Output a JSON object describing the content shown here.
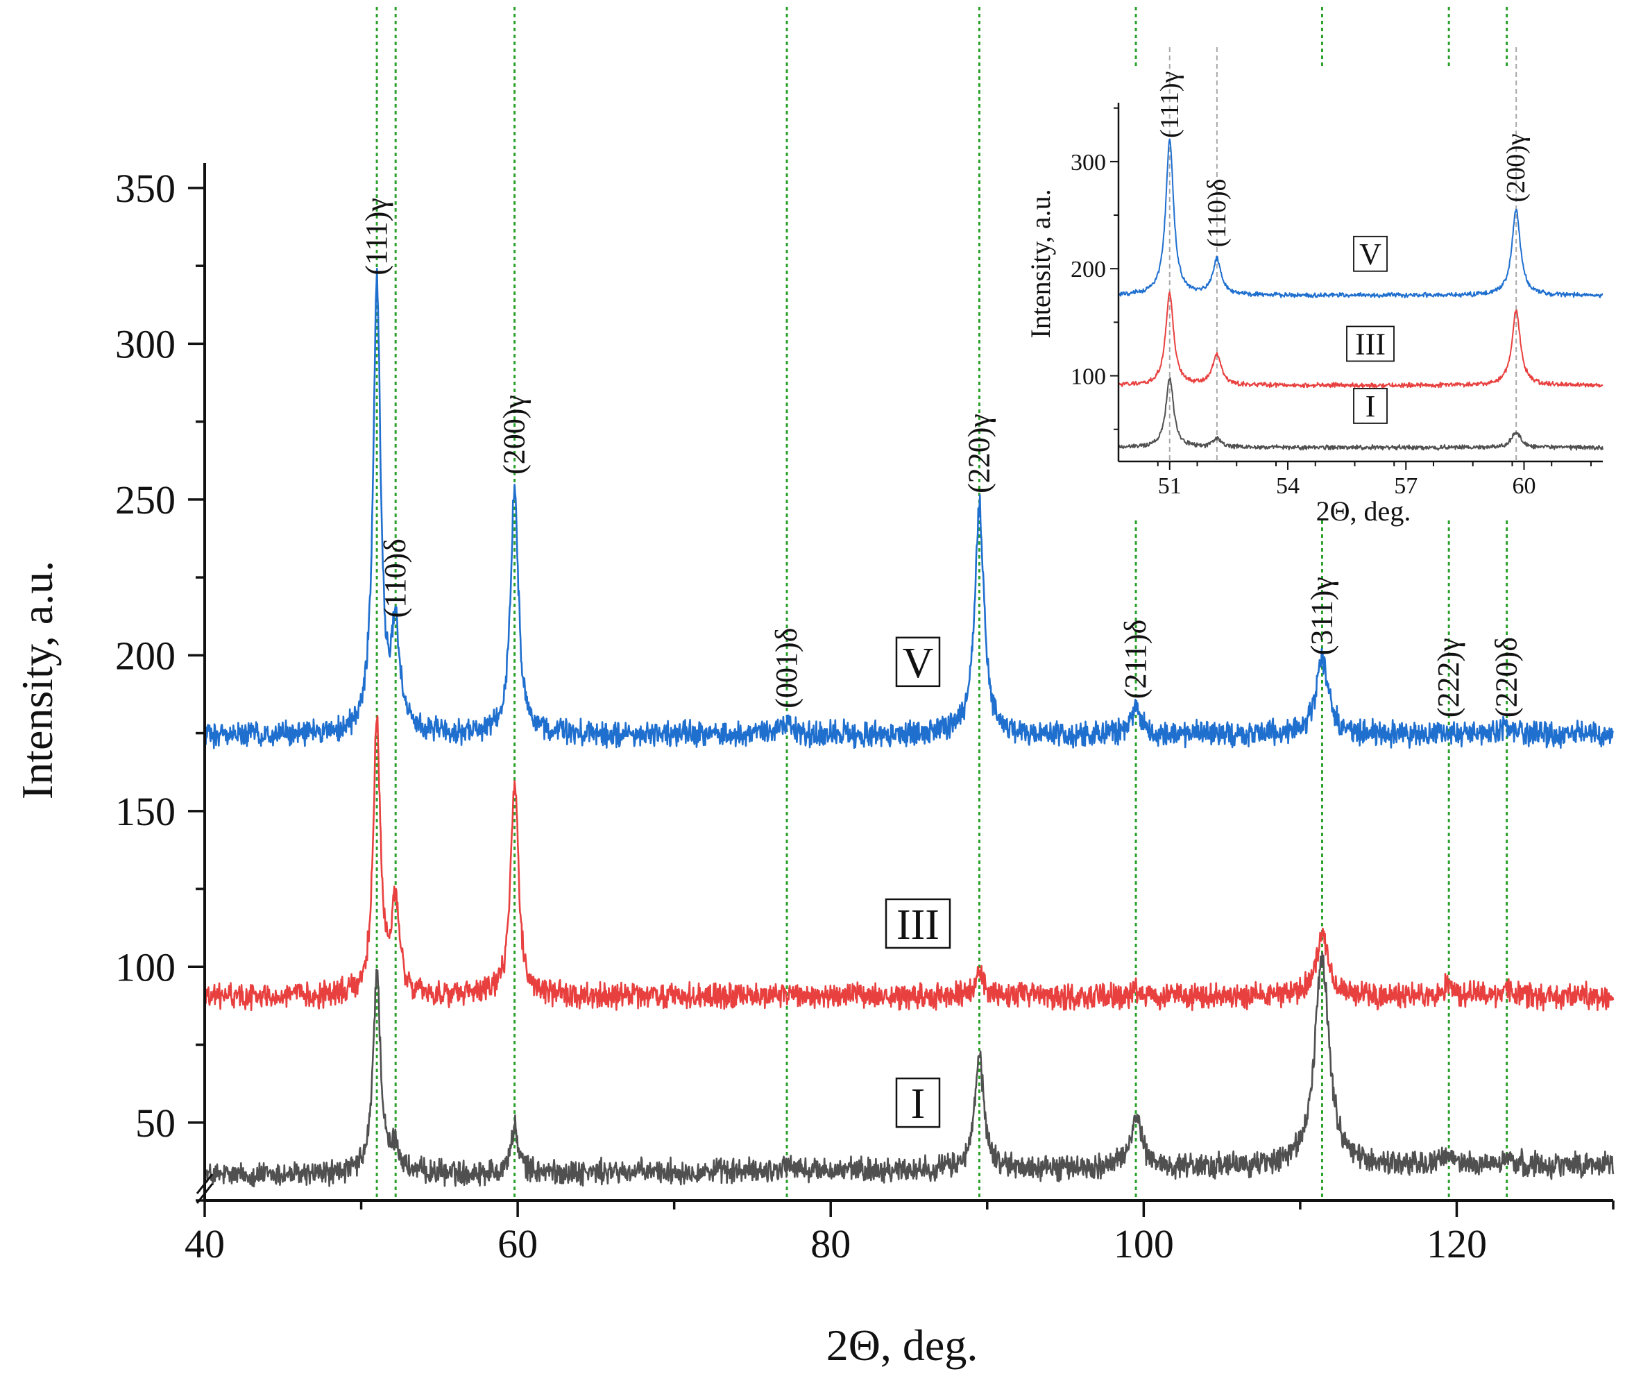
{
  "chart_data": {
    "type": "line",
    "title": "",
    "xlabel": "2Θ, deg.",
    "ylabel": "Intensity, a.u.",
    "xlim": [
      40,
      130
    ],
    "ylim": [
      25,
      358
    ],
    "x_ticks": [
      "40",
      "60",
      "80",
      "100",
      "120"
    ],
    "y_ticks": [
      "50",
      "100",
      "150",
      "200",
      "250",
      "300",
      "350"
    ],
    "reference_lines_x": [
      51.0,
      52.2,
      59.8,
      77.2,
      89.5,
      99.5,
      111.4,
      119.5,
      123.2
    ],
    "series": [
      {
        "name": "I",
        "color": "#505050",
        "baseline": 33,
        "slope": 0.04,
        "peaks": [
          {
            "x": 51.0,
            "height": 65,
            "width": 0.28
          },
          {
            "x": 52.2,
            "height": 8,
            "width": 0.3
          },
          {
            "x": 59.8,
            "height": 14,
            "width": 0.3
          },
          {
            "x": 77.2,
            "height": 2,
            "width": 0.4
          },
          {
            "x": 89.5,
            "height": 36,
            "width": 0.35
          },
          {
            "x": 99.5,
            "height": 16,
            "width": 0.45
          },
          {
            "x": 111.4,
            "height": 67,
            "width": 0.55
          },
          {
            "x": 119.5,
            "height": 3,
            "width": 0.4
          },
          {
            "x": 123.2,
            "height": 2,
            "width": 0.4
          }
        ]
      },
      {
        "name": "III",
        "color": "#e8403f",
        "baseline": 90.5,
        "slope": 0,
        "peaks": [
          {
            "x": 51.0,
            "height": 86,
            "width": 0.28
          },
          {
            "x": 52.2,
            "height": 29,
            "width": 0.3
          },
          {
            "x": 59.8,
            "height": 69,
            "width": 0.3
          },
          {
            "x": 77.2,
            "height": 1,
            "width": 0.4
          },
          {
            "x": 89.5,
            "height": 7,
            "width": 0.35
          },
          {
            "x": 99.5,
            "height": 2,
            "width": 0.4
          },
          {
            "x": 111.4,
            "height": 19,
            "width": 0.5
          },
          {
            "x": 119.5,
            "height": 4,
            "width": 0.4
          },
          {
            "x": 123.2,
            "height": 2,
            "width": 0.4
          }
        ]
      },
      {
        "name": "V",
        "color": "#1f6fcf",
        "baseline": 174.5,
        "slope": 0,
        "peaks": [
          {
            "x": 51.0,
            "height": 145,
            "width": 0.28
          },
          {
            "x": 52.2,
            "height": 33,
            "width": 0.3
          },
          {
            "x": 59.8,
            "height": 79,
            "width": 0.3
          },
          {
            "x": 77.2,
            "height": 4,
            "width": 0.4
          },
          {
            "x": 89.5,
            "height": 74,
            "width": 0.35
          },
          {
            "x": 99.5,
            "height": 8,
            "width": 0.4
          },
          {
            "x": 111.4,
            "height": 24,
            "width": 0.5
          },
          {
            "x": 119.5,
            "height": 1,
            "width": 0.4
          },
          {
            "x": 123.2,
            "height": 3,
            "width": 0.4
          }
        ]
      }
    ],
    "sample_labels": [
      {
        "text": "V",
        "series": "V"
      },
      {
        "text": "III",
        "series": "III"
      },
      {
        "text": "I",
        "series": "I"
      }
    ],
    "peak_labels": [
      {
        "text": "(111)γ",
        "x": 51.0,
        "y": 322
      },
      {
        "text": "(110)δ",
        "x": 52.2,
        "y": 212
      },
      {
        "text": "(200)γ",
        "x": 59.8,
        "y": 258
      },
      {
        "text": "(001)δ",
        "x": 77.2,
        "y": 183
      },
      {
        "text": "(220)γ",
        "x": 89.5,
        "y": 252
      },
      {
        "text": "(211)δ",
        "x": 99.5,
        "y": 186
      },
      {
        "text": "(311)γ",
        "x": 111.4,
        "y": 200
      },
      {
        "text": "(222)γ",
        "x": 119.5,
        "y": 180
      },
      {
        "text": "(220)δ",
        "x": 123.2,
        "y": 180
      }
    ],
    "inset": {
      "type": "line",
      "xlabel": "2Θ, deg.",
      "ylabel": "Intensity, a.u.",
      "xlim": [
        49.7,
        62.0
      ],
      "ylim": [
        20,
        355
      ],
      "x_ticks": [
        "51",
        "54",
        "57",
        "60"
      ],
      "y_ticks": [
        "100",
        "200",
        "300"
      ],
      "reference_lines_x": [
        51.0,
        52.2,
        59.8
      ],
      "series": [
        {
          "name": "I",
          "color": "#505050",
          "baseline": 33,
          "peaks": [
            {
              "x": 51.0,
              "height": 65,
              "width": 0.12
            },
            {
              "x": 52.2,
              "height": 8,
              "width": 0.13
            },
            {
              "x": 59.8,
              "height": 15,
              "width": 0.13
            }
          ]
        },
        {
          "name": "III",
          "color": "#e8403f",
          "baseline": 91,
          "peaks": [
            {
              "x": 51.0,
              "height": 86,
              "width": 0.12
            },
            {
              "x": 52.2,
              "height": 29,
              "width": 0.13
            },
            {
              "x": 59.8,
              "height": 70,
              "width": 0.13
            }
          ]
        },
        {
          "name": "V",
          "color": "#1f6fcf",
          "baseline": 175,
          "peaks": [
            {
              "x": 51.0,
              "height": 145,
              "width": 0.12
            },
            {
              "x": 52.2,
              "height": 33,
              "width": 0.13
            },
            {
              "x": 59.8,
              "height": 80,
              "width": 0.13
            }
          ]
        }
      ],
      "sample_labels": [
        {
          "text": "V",
          "series": "V"
        },
        {
          "text": "III",
          "series": "III"
        },
        {
          "text": "I",
          "series": "I"
        }
      ],
      "peak_labels": [
        {
          "text": "(111)γ",
          "x": 51.0,
          "y": 322
        },
        {
          "text": "(110)δ",
          "x": 52.2,
          "y": 220
        },
        {
          "text": "(200)γ",
          "x": 59.8,
          "y": 262
        }
      ]
    }
  }
}
